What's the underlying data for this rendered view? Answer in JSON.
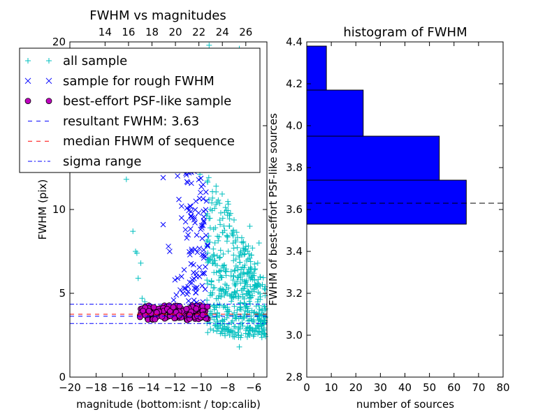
{
  "chart_data": [
    {
      "type": "scatter",
      "title": "FWHM vs magnitudes",
      "xlabel": "magnitude (bottom:isnt / top:calib)",
      "ylabel": "FWHM (pix)",
      "xlim": [
        -20,
        -5
      ],
      "ylim": [
        0,
        20
      ],
      "xticks": [
        "−20",
        "−18",
        "−16",
        "−14",
        "−12",
        "−10",
        "−8",
        "−6"
      ],
      "yticks": [
        "0",
        "5",
        "10",
        "15",
        "20"
      ],
      "top_xlim": [
        11,
        27.8
      ],
      "top_xticks": [
        "14",
        "16",
        "18",
        "20",
        "22",
        "24",
        "26"
      ],
      "legend_position": "upper-left",
      "legend": [
        {
          "label": "all sample",
          "marker": "plus",
          "color": "#00bfbf"
        },
        {
          "label": "sample for rough FWHM",
          "marker": "x",
          "color": "#0000ff"
        },
        {
          "label": "best-effort PSF-like sample",
          "marker": "circle",
          "color": "#bf00bf"
        },
        {
          "label": "resultant FWHM: 3.63",
          "line": "dashed",
          "color": "#0000ff"
        },
        {
          "label": "median FHWM of sequence",
          "line": "dashed",
          "color": "#ff0000"
        },
        {
          "label": "sigma range",
          "line": "dashdot",
          "color": "#0000ff"
        }
      ],
      "hlines": {
        "resultant_fwhm": 3.63,
        "median_fwhm": 3.75,
        "sigma_range": [
          3.2,
          4.35
        ]
      },
      "series": [
        {
          "name": "all sample",
          "points": [
            [
              -15.7,
              11.8
            ],
            [
              -15.2,
              8.7
            ],
            [
              -15.0,
              7.5
            ],
            [
              -14.9,
              7.4
            ],
            [
              -14.6,
              6.8
            ],
            [
              -14.8,
              5.9
            ],
            [
              -14.5,
              4.7
            ],
            [
              -14.3,
              4.5
            ],
            [
              -7.1,
              1.8
            ],
            [
              -6.6,
              2.8
            ],
            [
              -6.3,
              2.5
            ],
            [
              -5.6,
              2.7
            ],
            [
              -5.2,
              2.6
            ],
            [
              -5.9,
              5.5
            ],
            [
              -6.0,
              6.2
            ],
            [
              -5.7,
              6.8
            ],
            [
              -5.6,
              8.0
            ],
            [
              -6.1,
              7.7
            ],
            [
              -6.3,
              9.0
            ],
            [
              -10.1,
              12.1
            ],
            [
              -9.6,
              18.5
            ],
            [
              -9.2,
              15.9
            ],
            [
              -9.4,
              19.8
            ],
            [
              -7.1,
              19.6
            ],
            [
              -10.6,
              13.9
            ],
            [
              -10.2,
              12.9
            ],
            [
              -9.3,
              14.2
            ]
          ],
          "cloud": {
            "x_range": [
              -9.6,
              -5.1
            ],
            "y_range": [
              2.6,
              13.0
            ],
            "count": 520
          }
        },
        {
          "name": "sample for rough FWHM",
          "points": [
            [
              -12.9,
              9.1
            ],
            [
              -12.4,
              7.5
            ],
            [
              -12.0,
              5.8
            ],
            [
              -11.5,
              6.0
            ],
            [
              -11.3,
              6.4
            ],
            [
              -11.3,
              5.3
            ],
            [
              -11.8,
              5.9
            ],
            [
              -11.8,
              12.0
            ],
            [
              -11.7,
              10.6
            ],
            [
              -11.5,
              10.2
            ],
            [
              -11.2,
              8.8
            ],
            [
              -11.1,
              8.3
            ],
            [
              -11.2,
              5.3
            ],
            [
              -11.0,
              5.1
            ],
            [
              -12.1,
              4.6
            ],
            [
              -11.9,
              4.9
            ],
            [
              -12.9,
              11.9
            ],
            [
              -12.5,
              7.8
            ],
            [
              -12.4,
              12.8
            ],
            [
              -12.2,
              13.2
            ],
            [
              -11.8,
              12.4
            ],
            [
              -11.5,
              9.5
            ],
            [
              -11.6,
              5.2
            ],
            [
              -11.4,
              5.0
            ]
          ],
          "cloud": {
            "x_range": [
              -11.2,
              -9.5
            ],
            "y_range": [
              4.3,
              18.0
            ],
            "count": 150
          }
        },
        {
          "name": "best-effort PSF-like sample",
          "cloud": {
            "x_range": [
              -14.7,
              -9.5
            ],
            "y_range": [
              3.4,
              4.3
            ],
            "count": 150
          }
        }
      ]
    },
    {
      "type": "bar",
      "orientation": "horizontal",
      "title": "histogram of FWHM",
      "xlabel": "number of sources",
      "ylabel": "FWHM of best-effort PSF-like sources",
      "xlim": [
        0,
        80
      ],
      "ylim": [
        2.8,
        4.4
      ],
      "xticks": [
        "0",
        "10",
        "20",
        "30",
        "40",
        "50",
        "60",
        "70",
        "80"
      ],
      "yticks": [
        "2.8",
        "3.0",
        "3.2",
        "3.4",
        "3.6",
        "3.8",
        "4.0",
        "4.2",
        "4.4"
      ],
      "bins": [
        {
          "low": 3.53,
          "high": 3.74,
          "count": 65
        },
        {
          "low": 3.74,
          "high": 3.95,
          "count": 54
        },
        {
          "low": 3.95,
          "high": 4.17,
          "count": 23
        },
        {
          "low": 4.17,
          "high": 4.38,
          "count": 8
        }
      ],
      "hline": 3.63,
      "colors": {
        "bar": "#0000ff"
      }
    }
  ]
}
